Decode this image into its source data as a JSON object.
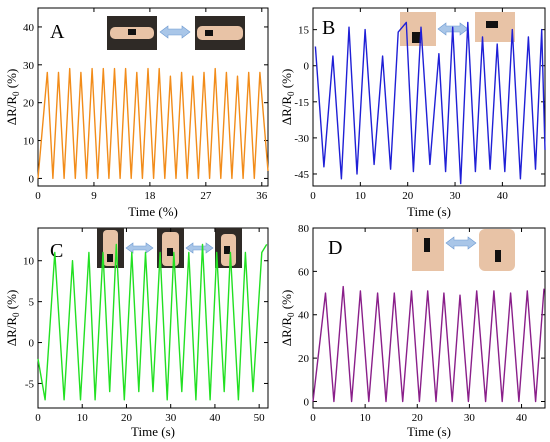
{
  "chart_data": [
    {
      "type": "line",
      "panel": "A",
      "color": "#f28c1a",
      "xlabel": "Time (%)",
      "ylabel": "ΔR/R0 (%)",
      "xlim": [
        0,
        37
      ],
      "ylim": [
        -2,
        45
      ],
      "xticks": [
        0,
        9,
        18,
        27,
        36
      ],
      "yticks": [
        0,
        10,
        20,
        30,
        40
      ],
      "grid": false,
      "peaks": [
        [
          1.5,
          28
        ],
        [
          3.3,
          28
        ],
        [
          5.1,
          29
        ],
        [
          6.9,
          28
        ],
        [
          8.7,
          29
        ],
        [
          10.5,
          29
        ],
        [
          12.3,
          29
        ],
        [
          14.1,
          29
        ],
        [
          15.9,
          28
        ],
        [
          17.7,
          29
        ],
        [
          19.5,
          29
        ],
        [
          21.3,
          27
        ],
        [
          23.1,
          28
        ],
        [
          24.9,
          27
        ],
        [
          26.7,
          28
        ],
        [
          28.5,
          29
        ],
        [
          30.3,
          28
        ],
        [
          32.1,
          27
        ],
        [
          33.9,
          28
        ],
        [
          35.7,
          28
        ]
      ],
      "troughs": [
        [
          0,
          0
        ],
        [
          2.4,
          0
        ],
        [
          4.2,
          0
        ],
        [
          6.0,
          0
        ],
        [
          7.8,
          0
        ],
        [
          9.6,
          0
        ],
        [
          11.4,
          0
        ],
        [
          13.2,
          0
        ],
        [
          15.0,
          0
        ],
        [
          16.8,
          0
        ],
        [
          18.6,
          0
        ],
        [
          20.4,
          0
        ],
        [
          22.2,
          0
        ],
        [
          24.0,
          0
        ],
        [
          25.8,
          0
        ],
        [
          27.6,
          0
        ],
        [
          29.4,
          0
        ],
        [
          31.2,
          0
        ],
        [
          33.0,
          0
        ],
        [
          34.8,
          0
        ],
        [
          37,
          2
        ]
      ]
    },
    {
      "type": "line",
      "panel": "B",
      "color": "#1f1fd6",
      "xlabel": "Time (s)",
      "ylabel": "ΔR/R0 (%)",
      "xlim": [
        0,
        49
      ],
      "ylim": [
        -50,
        24
      ],
      "xticks": [
        0,
        10,
        20,
        30,
        40
      ],
      "yticks": [
        -45,
        -30,
        -15,
        0,
        15
      ],
      "grid": false,
      "peaks": [
        [
          0.5,
          8
        ],
        [
          4.2,
          4
        ],
        [
          7.6,
          16
        ],
        [
          11.0,
          15
        ],
        [
          14.7,
          4
        ],
        [
          18.0,
          14
        ],
        [
          19.7,
          18
        ],
        [
          22.8,
          16
        ],
        [
          26.6,
          5
        ],
        [
          29.5,
          16
        ],
        [
          32.7,
          18
        ],
        [
          35.8,
          12
        ],
        [
          38.9,
          9
        ],
        [
          42.1,
          15
        ],
        [
          45.5,
          12
        ],
        [
          48.3,
          15
        ]
      ],
      "troughs": [
        [
          2.3,
          -42
        ],
        [
          6.0,
          -47
        ],
        [
          9.3,
          -45
        ],
        [
          12.9,
          -41
        ],
        [
          16.4,
          -43
        ],
        [
          21.2,
          -44
        ],
        [
          24.7,
          -41
        ],
        [
          28.0,
          -44
        ],
        [
          31.2,
          -49
        ],
        [
          34.3,
          -44
        ],
        [
          37.4,
          -43
        ],
        [
          40.5,
          -44
        ],
        [
          43.8,
          -47
        ],
        [
          47.0,
          -43
        ],
        [
          49,
          -35
        ]
      ]
    },
    {
      "type": "line",
      "panel": "C",
      "color": "#22e022",
      "xlabel": "Time (s)",
      "ylabel": "ΔR/R0 (%)",
      "xlim": [
        0,
        52
      ],
      "ylim": [
        -8,
        14
      ],
      "xticks": [
        0,
        10,
        20,
        30,
        40,
        50
      ],
      "yticks": [
        -5,
        0,
        5,
        10
      ],
      "grid": false,
      "peaks": [
        [
          3.8,
          11
        ],
        [
          7.8,
          10
        ],
        [
          11.5,
          11
        ],
        [
          14.7,
          11
        ],
        [
          17.7,
          12
        ],
        [
          21.2,
          11
        ],
        [
          24.3,
          11
        ],
        [
          27.6,
          11
        ],
        [
          30.7,
          11
        ],
        [
          34.1,
          11
        ],
        [
          37.2,
          12
        ],
        [
          40.4,
          11
        ],
        [
          43.5,
          11
        ],
        [
          46.9,
          11
        ],
        [
          50.6,
          11
        ],
        [
          51.7,
          12
        ]
      ],
      "troughs": [
        [
          0,
          -2
        ],
        [
          1.6,
          -7
        ],
        [
          5.9,
          -7
        ],
        [
          9.6,
          -7
        ],
        [
          12.9,
          -7
        ],
        [
          16.2,
          -6
        ],
        [
          19.5,
          -7
        ],
        [
          22.8,
          -6
        ],
        [
          26.0,
          -6
        ],
        [
          29.2,
          -7
        ],
        [
          32.5,
          -6
        ],
        [
          35.7,
          -7
        ],
        [
          38.9,
          -7
        ],
        [
          42.1,
          -6
        ],
        [
          45.3,
          -7
        ],
        [
          48.6,
          -6
        ]
      ]
    },
    {
      "type": "line",
      "panel": "D",
      "color": "#8a1f8a",
      "xlabel": "Time (s)",
      "ylabel": "ΔR/R0 (%)",
      "xlim": [
        0,
        44.5
      ],
      "ylim": [
        -3,
        80
      ],
      "xticks": [
        0,
        10,
        20,
        30,
        40
      ],
      "yticks": [
        0,
        20,
        40,
        60,
        80
      ],
      "grid": false,
      "peaks": [
        [
          2.4,
          50
        ],
        [
          5.8,
          53
        ],
        [
          9.1,
          51
        ],
        [
          12.4,
          50
        ],
        [
          15.6,
          50
        ],
        [
          18.9,
          51
        ],
        [
          22.0,
          51
        ],
        [
          25.1,
          50
        ],
        [
          28.2,
          49
        ],
        [
          31.4,
          51
        ],
        [
          34.7,
          51
        ],
        [
          37.9,
          50
        ],
        [
          41.1,
          51
        ],
        [
          44.3,
          52
        ]
      ],
      "troughs": [
        [
          0,
          0
        ],
        [
          4.0,
          0
        ],
        [
          7.4,
          0
        ],
        [
          10.7,
          0
        ],
        [
          14.0,
          0
        ],
        [
          17.2,
          0
        ],
        [
          20.4,
          0
        ],
        [
          23.6,
          0
        ],
        [
          26.7,
          0
        ],
        [
          29.8,
          0
        ],
        [
          33.1,
          0
        ],
        [
          36.3,
          0
        ],
        [
          39.5,
          0
        ],
        [
          42.7,
          0
        ]
      ]
    }
  ]
}
